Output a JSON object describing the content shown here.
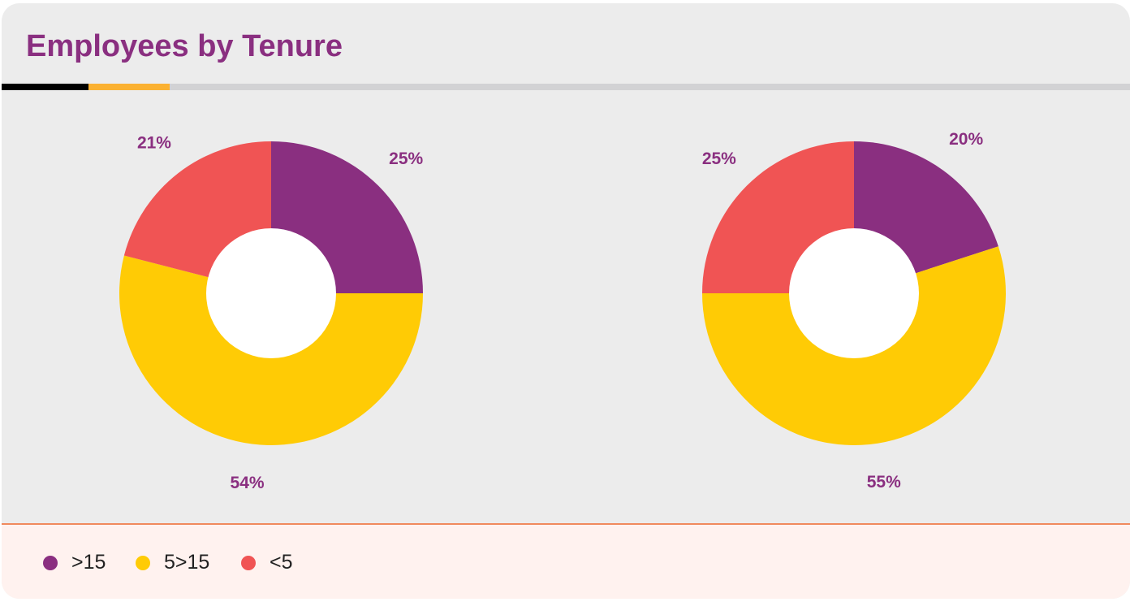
{
  "title": "Employees by Tenure",
  "colors": {
    "title": "#8a2f80",
    ">15": "#8a2f80",
    "5>15": "#ffcb05",
    "<5": "#f05454"
  },
  "chart_data": [
    {
      "type": "pie",
      "donut": true,
      "categories": [
        ">15",
        "5>15",
        "<5"
      ],
      "values": [
        25,
        54,
        21
      ],
      "labels": [
        "25%",
        "54%",
        "21%"
      ]
    },
    {
      "type": "pie",
      "donut": true,
      "categories": [
        ">15",
        "5>15",
        "<5"
      ],
      "values": [
        20,
        55,
        25
      ],
      "labels": [
        "20%",
        "55%",
        "25%"
      ]
    }
  ],
  "legend": [
    {
      "label": ">15"
    },
    {
      "label": "5>15"
    },
    {
      "label": "<5"
    }
  ]
}
